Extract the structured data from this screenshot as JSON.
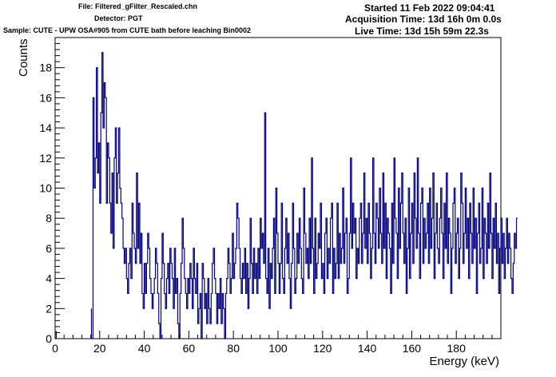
{
  "header": {
    "file": "File: Filtered_gFilter_Rescaled.chn",
    "detector": "Detector: PGT",
    "sample": "Sample: CUTE - UPW OSA#905 from CUTE bath before leaching Bin0002",
    "started": "Started 11 Feb 2022 09:04:41",
    "acquisition_time": "Acquisition Time: 13d 16h 0m 0.0s",
    "live_time": "Live Time: 13d 15h 59m 22.3s"
  },
  "colors": {
    "histogram": "#000080",
    "axis": "#000000",
    "background": "#ffffff"
  },
  "chart_data": {
    "type": "histogram",
    "title": "",
    "xlabel": "Energy (keV)",
    "ylabel": "Counts",
    "xlim": [
      0,
      200
    ],
    "ylim": [
      0,
      20
    ],
    "grid": false,
    "x_ticks": [
      0,
      20,
      40,
      60,
      80,
      100,
      120,
      140,
      160,
      180
    ],
    "y_ticks": [
      0,
      2,
      4,
      6,
      8,
      10,
      12,
      14,
      16,
      18
    ],
    "bin_width": 0.5,
    "bins_start": 16.5,
    "values": [
      0,
      16,
      10,
      12,
      18,
      11,
      13,
      9,
      15,
      19,
      14,
      17,
      16,
      9,
      13,
      12,
      9,
      7,
      11,
      6,
      12,
      14,
      9,
      11,
      14,
      10,
      9,
      8,
      6,
      5,
      6,
      4,
      3,
      5,
      6,
      4,
      9,
      7,
      6,
      5,
      11,
      6,
      9,
      5,
      7,
      3,
      2,
      5,
      3,
      5,
      7,
      6,
      4,
      3,
      2,
      3,
      4,
      6,
      5,
      3,
      1,
      0,
      4,
      7,
      5,
      3,
      2,
      4,
      5,
      3,
      6,
      5,
      4,
      2,
      6,
      3,
      4,
      1,
      0,
      3,
      5,
      8,
      6,
      4,
      3,
      2,
      4,
      3,
      5,
      4,
      2,
      6,
      4,
      3,
      5,
      1,
      2,
      3,
      0,
      5,
      4,
      2,
      3,
      1,
      4,
      2,
      1,
      3,
      5,
      6,
      4,
      3,
      1,
      3,
      2,
      4,
      1,
      3,
      2,
      0,
      3,
      4,
      6,
      5,
      3,
      4,
      7,
      4,
      5,
      6,
      9,
      8,
      6,
      4,
      3,
      5,
      4,
      6,
      3,
      5,
      2,
      4,
      8,
      5,
      3,
      6,
      4,
      5,
      3,
      6,
      4,
      8,
      6,
      7,
      5,
      15,
      4,
      3,
      6,
      2,
      5,
      4,
      6,
      8,
      3,
      10,
      7,
      5,
      3,
      5,
      9,
      4,
      3,
      6,
      8,
      5,
      7,
      4,
      2,
      5,
      9,
      6,
      3,
      4,
      7,
      5,
      8,
      6,
      4,
      3,
      10,
      7,
      5,
      6,
      4,
      8,
      5,
      12,
      6,
      3,
      8,
      4,
      5,
      7,
      6,
      9,
      4,
      5,
      3,
      7,
      8,
      4,
      6,
      5,
      8,
      9,
      3,
      6,
      4,
      5,
      9,
      4,
      7,
      5,
      6,
      10,
      5,
      7,
      8,
      3,
      4,
      7,
      12,
      6,
      9,
      7,
      8,
      4,
      6,
      5,
      8,
      9,
      5,
      7,
      11,
      6,
      8,
      5,
      9,
      7,
      4,
      6,
      12,
      7,
      5,
      9,
      8,
      6,
      10,
      7,
      5,
      11,
      6,
      9,
      4,
      8,
      7,
      6,
      3,
      9,
      5,
      12,
      8,
      7,
      4,
      10,
      6,
      9,
      11,
      7,
      5,
      8,
      3,
      6,
      10,
      4,
      7,
      9,
      5,
      11,
      8,
      6,
      12,
      7,
      4,
      9,
      10,
      5,
      8,
      6,
      7,
      9,
      5,
      10,
      6,
      8,
      11,
      4,
      7,
      9,
      6,
      5,
      8,
      10,
      7,
      4,
      9,
      6,
      11,
      5,
      8,
      7,
      3,
      6,
      9,
      10,
      5,
      7,
      8,
      4,
      6,
      11,
      9,
      5,
      7,
      10,
      6,
      8,
      4,
      9,
      7,
      5,
      10,
      6,
      8,
      3,
      7,
      9,
      5,
      6,
      10,
      4,
      8,
      7,
      5,
      9,
      6,
      11,
      7,
      4,
      8,
      6,
      9,
      5,
      7,
      3,
      6,
      8,
      5,
      7,
      4,
      6,
      8,
      5,
      7,
      6,
      4,
      3,
      5,
      7,
      6,
      8
    ]
  }
}
